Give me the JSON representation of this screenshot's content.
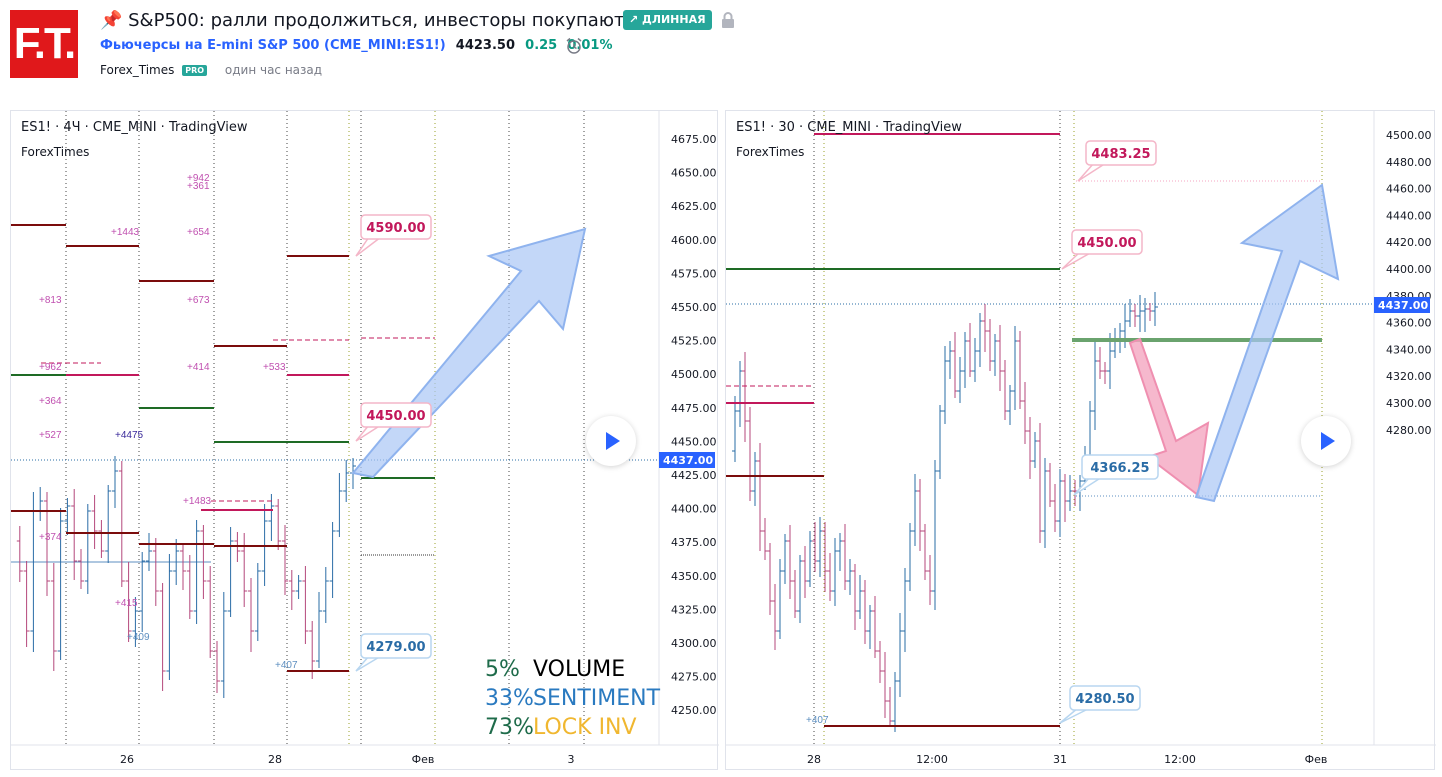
{
  "header": {
    "logo_text": "F.T.",
    "title": "📌 S&P500: ралли продолжиться, инвесторы покупают?",
    "badge": "↗ ДЛИННАЯ",
    "symbol_name": "Фьючерсы на E-mini S&P 500 (CME_MINI:ES1!)",
    "price": "4423.50",
    "change": "0.25",
    "change_pct": "0.01%",
    "author": "Forex_Times",
    "pro_badge": "PRO",
    "published": "один час назад",
    "icons": [
      "pin-icon",
      "lock-icon",
      "alarm-icon"
    ]
  },
  "colors": {
    "up": "#2a6ca6",
    "down": "#b4477b",
    "dark_red": "#7b0c0c",
    "green": "#1e6b25",
    "pink": "#c2185b",
    "arrow_blue": "#a9c6f5",
    "arrow_pink": "#f4a6c0"
  },
  "chart1": {
    "legend": "ES1! · 4Ч · CME_MINI · TradingView",
    "watermark": "ForexTimes",
    "yticks": [
      "4675.00",
      "4650.00",
      "4625.00",
      "4600.00",
      "4575.00",
      "4550.00",
      "4525.00",
      "4500.00",
      "4475.00",
      "4450.00",
      "4425.00",
      "4400.00",
      "4375.00",
      "4350.00",
      "4325.00",
      "4300.00",
      "4275.00",
      "4250.00"
    ],
    "current_price": "4437.00",
    "xticks": [
      "26",
      "28",
      "Фев",
      "3"
    ],
    "callouts": [
      "4590.00",
      "4450.00",
      "4279.00"
    ],
    "volume_labels": [
      "+942",
      "+361",
      "+1443",
      "+654",
      "+813",
      "+673",
      "+962",
      "+414",
      "+533",
      "+364",
      "+527",
      "+4475",
      "+1483",
      "+374",
      "+415",
      "+409",
      "+407"
    ],
    "stats": [
      {
        "pct": "5%",
        "label": "VOLUME"
      },
      {
        "pct": "33%",
        "label": "SENTIMENT"
      },
      {
        "pct": "73%",
        "label": "LOCK INV"
      }
    ]
  },
  "chart2": {
    "legend": "ES1! · 30 · CME_MINI · TradingView",
    "watermark": "ForexTimes",
    "yticks": [
      "4500.00",
      "4480.00",
      "4460.00",
      "4440.00",
      "4420.00",
      "4400.00",
      "4380.00",
      "4360.00",
      "4340.00",
      "4320.00",
      "4300.00",
      "4280.00"
    ],
    "current_price": "4437.00",
    "xticks": [
      "28",
      "12:00",
      "31",
      "12:00",
      "Фев"
    ],
    "callouts": [
      "4483.25",
      "4450.00",
      "4366.25",
      "4280.50"
    ],
    "volume_labels": [
      "+407"
    ]
  }
}
